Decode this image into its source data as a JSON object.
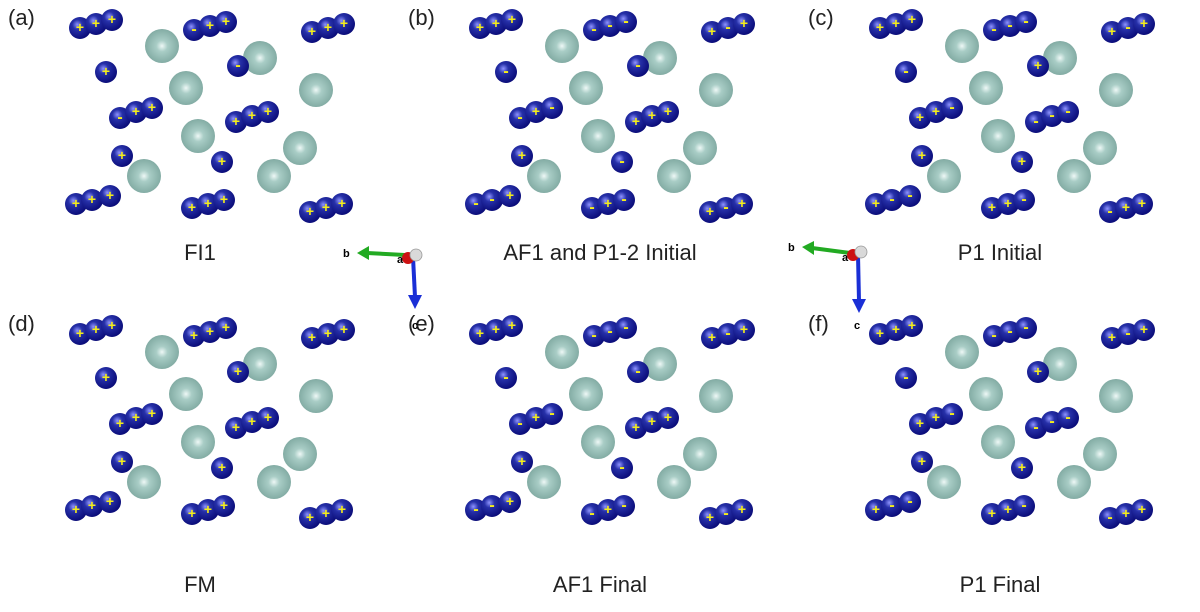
{
  "colors": {
    "dark_blue": "#0b0d7a",
    "blue_mid": "#2630a8",
    "sphere_highlight": "#8f94ff",
    "teal_sphere": "#7da79f",
    "teal_highlight": "#eef8f6",
    "spin_symbol": "#f5ee1a",
    "axis_b": "#22aa22",
    "axis_c": "#1a2fd6",
    "axis_a": "#cc1111"
  },
  "panels": [
    {
      "label": "(a)",
      "caption": "FI1",
      "spins": [
        "+",
        "+",
        "+",
        "-",
        "+",
        "+",
        "+",
        "+",
        "+",
        "+",
        "-",
        "-",
        "+",
        "+",
        "+",
        "+",
        "+",
        "+",
        "+",
        "+",
        "+",
        "+",
        "+",
        "+"
      ]
    },
    {
      "label": "(b)",
      "caption": "AF1 and P1-2 Initial",
      "spins": [
        "+",
        "+",
        "+",
        "-",
        "-",
        "-",
        "+",
        "-",
        "+",
        "-",
        "-",
        "-",
        "+",
        "-",
        "+",
        "+",
        "+",
        "+",
        "-",
        "-",
        "-",
        "+",
        "-",
        "+"
      ]
    },
    {
      "label": "(c)",
      "caption": "P1 Initial",
      "spins": [
        "+",
        "+",
        "+",
        "-",
        "-",
        "-",
        "+",
        "-",
        "+",
        "-",
        "+",
        "+",
        "+",
        "-",
        "-",
        "-",
        "-",
        "+",
        "+",
        "+",
        "-",
        "-",
        "+",
        "+"
      ]
    },
    {
      "label": "(d)",
      "caption": "FM",
      "spins": [
        "+",
        "+",
        "+",
        "+",
        "+",
        "+",
        "+",
        "+",
        "+",
        "+",
        "+",
        "+",
        "+",
        "+",
        "+",
        "+",
        "+",
        "+",
        "+",
        "+",
        "+",
        "+",
        "+",
        "+"
      ]
    },
    {
      "label": "(e)",
      "caption": "AF1 Final",
      "spins": [
        "+",
        "+",
        "+",
        "-",
        "-",
        "-",
        "+",
        "-",
        "+",
        "-",
        "-",
        "-",
        "+",
        "-",
        "+",
        "+",
        "+",
        "+",
        "-",
        "-",
        "-",
        "+",
        "-",
        "+"
      ]
    },
    {
      "label": "(f)",
      "caption": "P1 Final",
      "spins": [
        "+",
        "+",
        "+",
        "-",
        "-",
        "-",
        "+",
        "-",
        "+",
        "-",
        "+",
        "+",
        "+",
        "-",
        "-",
        "-",
        "-",
        "+",
        "+",
        "+",
        "-",
        "-",
        "+",
        "+"
      ]
    }
  ],
  "axes": {
    "b": "b",
    "c": "c",
    "a": "a"
  }
}
